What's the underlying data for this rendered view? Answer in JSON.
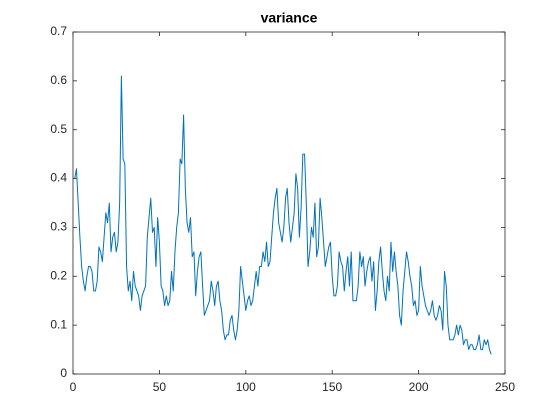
{
  "chart_data": {
    "type": "line",
    "title": "variance",
    "x": [
      1,
      2,
      3,
      4,
      5,
      6,
      7,
      8,
      9,
      10,
      11,
      12,
      13,
      14,
      15,
      16,
      17,
      18,
      19,
      20,
      21,
      22,
      23,
      24,
      25,
      26,
      27,
      28,
      29,
      30,
      31,
      32,
      33,
      34,
      35,
      36,
      37,
      38,
      39,
      40,
      41,
      42,
      43,
      44,
      45,
      46,
      47,
      48,
      49,
      50,
      51,
      52,
      53,
      54,
      55,
      56,
      57,
      58,
      59,
      60,
      61,
      62,
      63,
      64,
      65,
      66,
      67,
      68,
      69,
      70,
      71,
      72,
      73,
      74,
      75,
      76,
      77,
      78,
      79,
      80,
      81,
      82,
      83,
      84,
      85,
      86,
      87,
      88,
      89,
      90,
      91,
      92,
      93,
      94,
      95,
      96,
      97,
      98,
      99,
      100,
      101,
      102,
      103,
      104,
      105,
      106,
      107,
      108,
      109,
      110,
      111,
      112,
      113,
      114,
      115,
      116,
      117,
      118,
      119,
      120,
      121,
      122,
      123,
      124,
      125,
      126,
      127,
      128,
      129,
      130,
      131,
      132,
      133,
      134,
      135,
      136,
      137,
      138,
      139,
      140,
      141,
      142,
      143,
      144,
      145,
      146,
      147,
      148,
      149,
      150,
      151,
      152,
      153,
      154,
      155,
      156,
      157,
      158,
      159,
      160,
      161,
      162,
      163,
      164,
      165,
      166,
      167,
      168,
      169,
      170,
      171,
      172,
      173,
      174,
      175,
      176,
      177,
      178,
      179,
      180,
      181,
      182,
      183,
      184,
      185,
      186,
      187,
      188,
      189,
      190,
      191,
      192,
      193,
      194,
      195,
      196,
      197,
      198,
      199,
      200,
      201,
      202,
      203,
      204,
      205,
      206,
      207,
      208,
      209,
      210,
      211,
      212,
      213,
      214,
      215,
      216,
      217,
      218,
      219,
      220,
      221,
      222,
      223,
      224,
      225,
      226,
      227,
      228,
      229,
      230,
      231,
      232,
      233,
      234,
      235,
      236,
      237,
      238,
      239,
      240,
      241,
      242
    ],
    "series": [
      {
        "color": "#0072bd",
        "values": [
          0.4,
          0.42,
          0.35,
          0.28,
          0.22,
          0.19,
          0.17,
          0.2,
          0.22,
          0.22,
          0.21,
          0.17,
          0.17,
          0.19,
          0.26,
          0.25,
          0.23,
          0.28,
          0.33,
          0.31,
          0.35,
          0.25,
          0.28,
          0.29,
          0.25,
          0.27,
          0.35,
          0.61,
          0.44,
          0.43,
          0.22,
          0.17,
          0.19,
          0.15,
          0.21,
          0.18,
          0.17,
          0.16,
          0.13,
          0.16,
          0.17,
          0.18,
          0.28,
          0.32,
          0.36,
          0.29,
          0.3,
          0.22,
          0.32,
          0.27,
          0.18,
          0.17,
          0.14,
          0.16,
          0.14,
          0.15,
          0.21,
          0.17,
          0.25,
          0.3,
          0.33,
          0.44,
          0.43,
          0.53,
          0.38,
          0.31,
          0.29,
          0.32,
          0.24,
          0.25,
          0.16,
          0.21,
          0.24,
          0.25,
          0.18,
          0.12,
          0.13,
          0.14,
          0.15,
          0.19,
          0.17,
          0.14,
          0.18,
          0.19,
          0.15,
          0.13,
          0.09,
          0.07,
          0.08,
          0.08,
          0.11,
          0.12,
          0.09,
          0.07,
          0.09,
          0.13,
          0.22,
          0.19,
          0.16,
          0.13,
          0.15,
          0.16,
          0.14,
          0.15,
          0.18,
          0.21,
          0.18,
          0.22,
          0.22,
          0.25,
          0.23,
          0.27,
          0.22,
          0.23,
          0.28,
          0.33,
          0.36,
          0.38,
          0.31,
          0.29,
          0.27,
          0.3,
          0.36,
          0.38,
          0.31,
          0.27,
          0.3,
          0.33,
          0.41,
          0.38,
          0.28,
          0.34,
          0.45,
          0.45,
          0.35,
          0.22,
          0.25,
          0.3,
          0.28,
          0.35,
          0.24,
          0.26,
          0.36,
          0.32,
          0.27,
          0.22,
          0.24,
          0.26,
          0.27,
          0.2,
          0.16,
          0.16,
          0.18,
          0.25,
          0.23,
          0.22,
          0.17,
          0.21,
          0.24,
          0.18,
          0.25,
          0.15,
          0.15,
          0.15,
          0.18,
          0.25,
          0.22,
          0.24,
          0.18,
          0.21,
          0.23,
          0.24,
          0.19,
          0.23,
          0.13,
          0.17,
          0.23,
          0.26,
          0.21,
          0.17,
          0.15,
          0.2,
          0.17,
          0.27,
          0.21,
          0.25,
          0.21,
          0.18,
          0.12,
          0.1,
          0.17,
          0.21,
          0.25,
          0.23,
          0.2,
          0.18,
          0.14,
          0.15,
          0.12,
          0.13,
          0.22,
          0.18,
          0.16,
          0.14,
          0.13,
          0.12,
          0.13,
          0.15,
          0.12,
          0.11,
          0.12,
          0.14,
          0.13,
          0.09,
          0.21,
          0.18,
          0.1,
          0.07,
          0.07,
          0.07,
          0.08,
          0.1,
          0.08,
          0.1,
          0.09,
          0.06,
          0.07,
          0.07,
          0.05,
          0.06,
          0.06,
          0.05,
          0.05,
          0.06,
          0.08,
          0.05,
          0.05,
          0.07,
          0.06,
          0.07,
          0.05,
          0.04
        ]
      }
    ],
    "xlim": [
      0,
      250
    ],
    "xticks": [
      0,
      50,
      100,
      150,
      200,
      250
    ],
    "ylim": [
      0,
      0.7
    ],
    "yticks": [
      0,
      0.1,
      0.2,
      0.3,
      0.4,
      0.5,
      0.6,
      0.7
    ],
    "grid": false
  }
}
